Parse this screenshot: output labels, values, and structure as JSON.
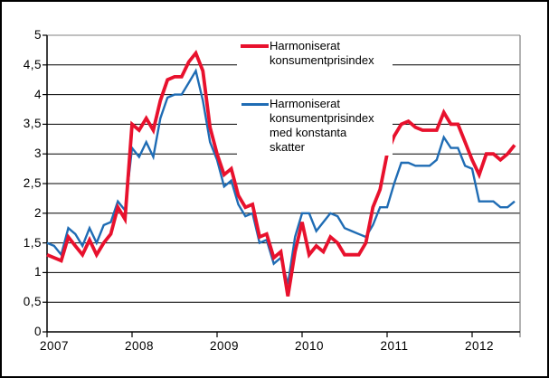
{
  "chart_data": {
    "type": "line",
    "title": "",
    "xlabel": "",
    "ylabel": "",
    "x_start": "2007-01",
    "x_frequency": "monthly",
    "x_months": 67,
    "xticklabels": [
      "2007",
      "2008",
      "2009",
      "2010",
      "2011",
      "2012"
    ],
    "yticklabels": [
      "0",
      "0,5",
      "1",
      "1,5",
      "2",
      "2,5",
      "3",
      "3,5",
      "4",
      "4,5",
      "5"
    ],
    "ylim": [
      0,
      5
    ],
    "grid": "horizontal",
    "legend_position": "inside-top-center",
    "axis_color": "#000000",
    "frame_color": "#808080",
    "series": [
      {
        "name": "Harmoniserat konsumentprisindex",
        "color": "#e8112d",
        "stroke_width": 3.8,
        "values": [
          1.3,
          1.25,
          1.2,
          1.6,
          1.45,
          1.3,
          1.55,
          1.3,
          1.5,
          1.65,
          2.1,
          1.9,
          3.5,
          3.4,
          3.6,
          3.4,
          3.9,
          4.25,
          4.3,
          4.3,
          4.55,
          4.7,
          4.4,
          3.45,
          3.0,
          2.65,
          2.75,
          2.3,
          2.1,
          2.15,
          1.6,
          1.65,
          1.25,
          1.35,
          0.6,
          1.35,
          1.85,
          1.3,
          1.45,
          1.35,
          1.6,
          1.5,
          1.3,
          1.3,
          1.3,
          1.5,
          2.1,
          2.4,
          3.0,
          3.3,
          3.5,
          3.55,
          3.45,
          3.4,
          3.4,
          3.4,
          3.7,
          3.5,
          3.5,
          3.2,
          2.9,
          2.65,
          3.0,
          3.0,
          2.9,
          3.0,
          3.15
        ]
      },
      {
        "name": "Harmoniserat konsumentprisindex med konstanta skatter",
        "color": "#1f6cb4",
        "stroke_width": 2.4,
        "values": [
          1.5,
          1.45,
          1.3,
          1.75,
          1.65,
          1.45,
          1.75,
          1.5,
          1.8,
          1.85,
          2.2,
          2.05,
          3.1,
          2.95,
          3.2,
          2.95,
          3.6,
          3.95,
          4.0,
          4.0,
          4.2,
          4.4,
          3.9,
          3.2,
          2.9,
          2.45,
          2.55,
          2.15,
          1.95,
          2.0,
          1.5,
          1.55,
          1.15,
          1.25,
          0.8,
          1.6,
          2.0,
          2.0,
          1.7,
          1.85,
          2.0,
          1.95,
          1.75,
          1.7,
          1.65,
          1.6,
          1.8,
          2.1,
          2.1,
          2.5,
          2.85,
          2.85,
          2.8,
          2.8,
          2.8,
          2.9,
          3.28,
          3.1,
          3.1,
          2.8,
          2.75,
          2.2,
          2.2,
          2.2,
          2.1,
          2.1,
          2.2
        ]
      }
    ],
    "legend": [
      {
        "label": "Harmoniserat\nkonsumentprisindex"
      },
      {
        "label": "Harmoniserat\nkonsumentprisindex\nmed konstanta\nskatter"
      }
    ]
  }
}
